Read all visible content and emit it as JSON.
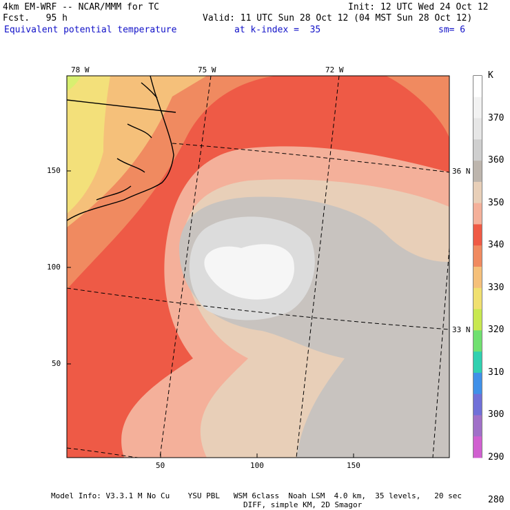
{
  "header": {
    "model": "4km EM-WRF -- NCAR/MMM for TC",
    "init": "Init: 12 UTC Wed 24 Oct 12",
    "fcst": "Fcst.   95 h",
    "valid": "Valid: 11 UTC Sun 28 Oct 12 (04 MST Sun 28 Oct 12)",
    "field": "Equivalent potential temperature",
    "level": "at k-index =  35",
    "smooth": "sm= 6"
  },
  "axes": {
    "lon_labels": [
      "78 W",
      "75 W",
      "72 W"
    ],
    "lat_labels": [
      "36 N",
      "33 N"
    ],
    "y_ticks": [
      "150",
      "100",
      "50"
    ],
    "x_ticks": [
      "50",
      "100",
      "150"
    ]
  },
  "colorbar": {
    "unit": "K",
    "labels": [
      "370",
      "360",
      "350",
      "340",
      "330",
      "320",
      "310",
      "300",
      "290",
      "280"
    ],
    "colors": [
      "#ffffff",
      "#f2f2f2",
      "#e6e6e6",
      "#cfcfcf",
      "#bdb5ad",
      "#e8cfb8",
      "#f4b09a",
      "#ef5a45",
      "#f08a60",
      "#f5c07a",
      "#f0e070",
      "#c8e850",
      "#70e070",
      "#30d0b0",
      "#4090e8",
      "#7070d8",
      "#a070c8",
      "#d060d0"
    ]
  },
  "footer": {
    "line1": "Model Info: V3.3.1 M No Cu    YSU PBL   WSM 6class  Noah LSM  4.0 km,  35 levels,   20 sec",
    "line2": "DIFF, simple KM, 2D Smagor"
  },
  "colors": {
    "title_blue": "#1010c8",
    "yellow": "#f3e07a",
    "orange_light": "#f5c07a",
    "orange": "#f08a60",
    "red": "#ee5a46",
    "salmon": "#f4b09a",
    "tan": "#e8cfb8",
    "grey": "#c8c3bf",
    "grey_light": "#dcdcdc",
    "white": "#f8f8f8"
  }
}
